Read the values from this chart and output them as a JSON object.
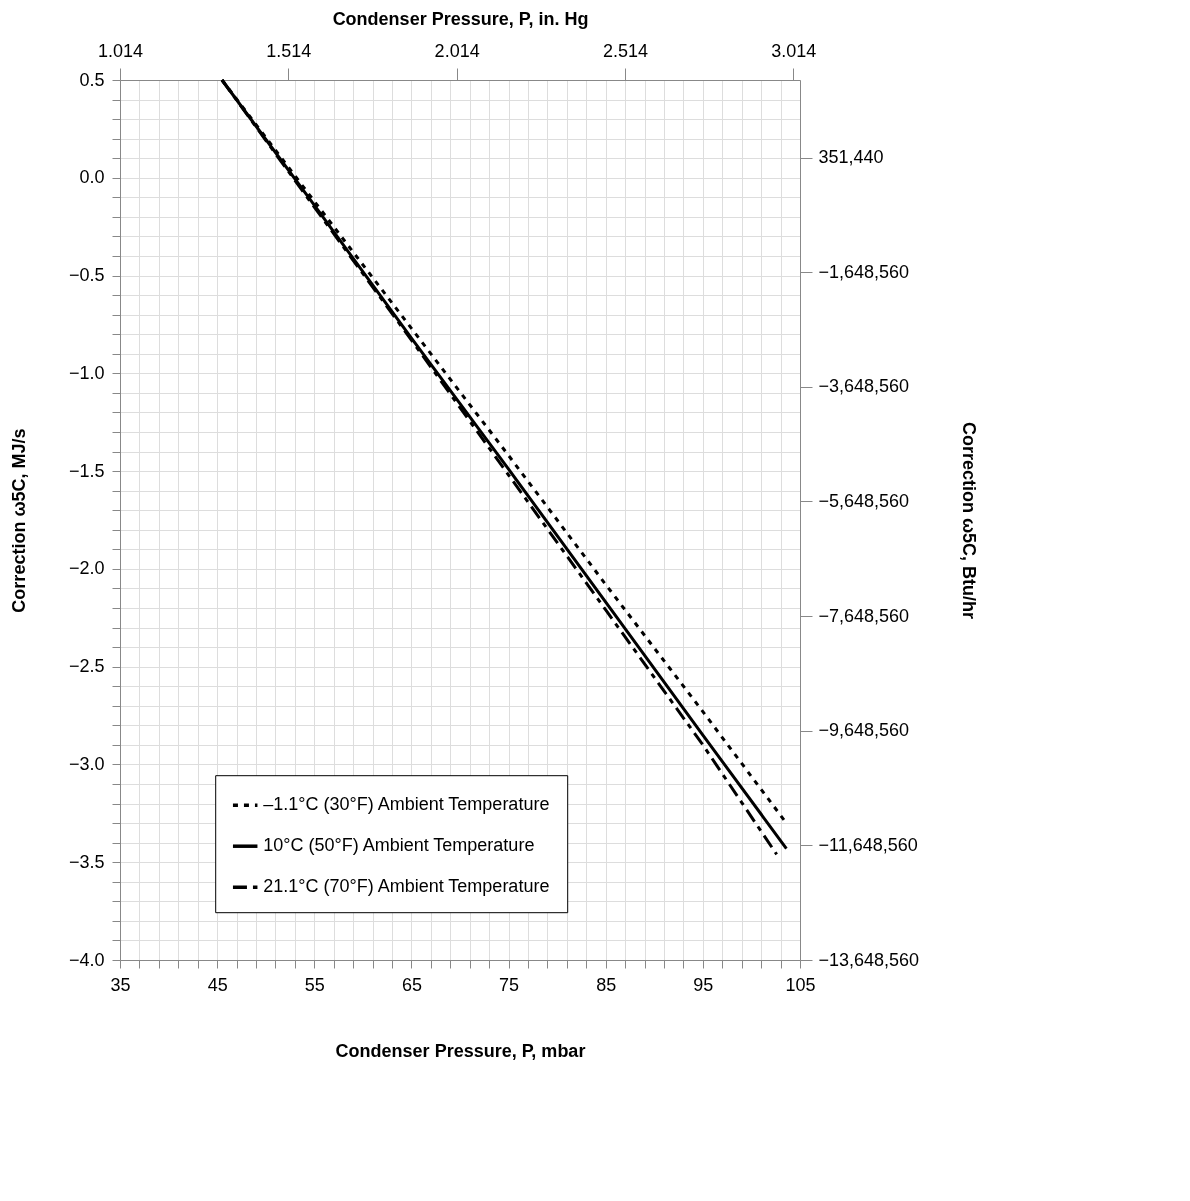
{
  "chart_data": {
    "type": "line",
    "xlabel": "Condenser Pressure, P, mbar",
    "x2label": "Condenser Pressure, P, in. Hg",
    "ylabel": "Correction ω5C, MJ/s",
    "y2label": "Correction ω5C, Btu/hr",
    "x": [
      45.5,
      55,
      65,
      75,
      85,
      95,
      103.6
    ],
    "series": [
      {
        "name": "–1.1°C (30°F) Ambient Temperature",
        "color": "#000000",
        "line_style": "dotted",
        "values": [
          0.5,
          -0.12,
          -0.77,
          -1.42,
          -2.08,
          -2.73,
          -3.3
        ]
      },
      {
        "name": "10°C (50°F) Ambient Temperature",
        "color": "#000000",
        "line_style": "solid",
        "values": [
          0.5,
          -0.14,
          -0.82,
          -1.49,
          -2.17,
          -2.85,
          -3.43
        ]
      },
      {
        "name": "21.1°C (70°F) Ambient Temperature",
        "color": "#000000",
        "line_style": "dashed",
        "x": [
          45.5,
          55,
          65,
          75,
          85,
          95,
          102.6
        ],
        "values": [
          0.5,
          -0.15,
          -0.83,
          -1.52,
          -2.21,
          -2.9,
          -3.46
        ]
      }
    ],
    "xlim": [
      35,
      105
    ],
    "xticks": [
      35,
      {
        "value": 37,
        "label": null
      },
      {
        "value": 39,
        "label": null
      },
      {
        "value": 41,
        "label": null
      },
      {
        "value": 43,
        "label": null
      },
      45,
      {
        "value": 47,
        "label": null
      },
      {
        "value": 49,
        "label": null
      },
      {
        "value": 51,
        "label": null
      },
      {
        "value": 53,
        "label": null
      },
      55,
      {
        "value": 57,
        "label": null
      },
      {
        "value": 59,
        "label": null
      },
      {
        "value": 61,
        "label": null
      },
      {
        "value": 63,
        "label": null
      },
      65,
      {
        "value": 67,
        "label": null
      },
      {
        "value": 69,
        "label": null
      },
      {
        "value": 71,
        "label": null
      },
      {
        "value": 73,
        "label": null
      },
      75,
      {
        "value": 77,
        "label": null
      },
      {
        "value": 79,
        "label": null
      },
      {
        "value": 81,
        "label": null
      },
      {
        "value": 83,
        "label": null
      },
      85,
      {
        "value": 87,
        "label": null
      },
      {
        "value": 89,
        "label": null
      },
      {
        "value": 91,
        "label": null
      },
      {
        "value": 93,
        "label": null
      },
      95,
      {
        "value": 97,
        "label": null
      },
      {
        "value": 99,
        "label": null
      },
      {
        "value": 101,
        "label": null
      },
      {
        "value": 103,
        "label": null
      },
      105
    ],
    "x2lim": [
      1.014,
      3.034
    ],
    "x2ticks": [
      1.014,
      1.514,
      2.014,
      2.514,
      3.014
    ],
    "ylim": [
      -4.0,
      0.5
    ],
    "yticks": [
      {
        "value": 0.5,
        "label": "0.5"
      },
      {
        "value": 0.4,
        "label": null
      },
      {
        "value": 0.3,
        "label": null
      },
      {
        "value": 0.2,
        "label": null
      },
      {
        "value": 0.1,
        "label": null
      },
      {
        "value": 0,
        "label": "0.0"
      },
      {
        "value": -0.1,
        "label": null
      },
      {
        "value": -0.2,
        "label": null
      },
      {
        "value": -0.3,
        "label": null
      },
      {
        "value": -0.4,
        "label": null
      },
      {
        "value": -0.5,
        "label": "−0.5"
      },
      {
        "value": -0.6,
        "label": null
      },
      {
        "value": -0.7,
        "label": null
      },
      {
        "value": -0.8,
        "label": null
      },
      {
        "value": -0.9,
        "label": null
      },
      {
        "value": -1.0,
        "label": "−1.0"
      },
      {
        "value": -1.1,
        "label": null
      },
      {
        "value": -1.2,
        "label": null
      },
      {
        "value": -1.3,
        "label": null
      },
      {
        "value": -1.4,
        "label": null
      },
      {
        "value": -1.5,
        "label": "−1.5"
      },
      {
        "value": -1.6,
        "label": null
      },
      {
        "value": -1.7,
        "label": null
      },
      {
        "value": -1.8,
        "label": null
      },
      {
        "value": -1.9,
        "label": null
      },
      {
        "value": -2.0,
        "label": "−2.0"
      },
      {
        "value": -2.1,
        "label": null
      },
      {
        "value": -2.2,
        "label": null
      },
      {
        "value": -2.3,
        "label": null
      },
      {
        "value": -2.4,
        "label": null
      },
      {
        "value": -2.5,
        "label": "−2.5"
      },
      {
        "value": -2.6,
        "label": null
      },
      {
        "value": -2.7,
        "label": null
      },
      {
        "value": -2.8,
        "label": null
      },
      {
        "value": -2.9,
        "label": null
      },
      {
        "value": -3.0,
        "label": "−3.0"
      },
      {
        "value": -3.1,
        "label": null
      },
      {
        "value": -3.2,
        "label": null
      },
      {
        "value": -3.3,
        "label": null
      },
      {
        "value": -3.4,
        "label": null
      },
      {
        "value": -3.5,
        "label": "−3.5"
      },
      {
        "value": -3.6,
        "label": null
      },
      {
        "value": -3.7,
        "label": null
      },
      {
        "value": -3.8,
        "label": null
      },
      {
        "value": -3.9,
        "label": null
      },
      {
        "value": -4.0,
        "label": "−4.0"
      }
    ],
    "y2lim": [
      -13648560,
      1705770
    ],
    "y2ticks": [
      {
        "value": 351440,
        "label": "351,440"
      },
      {
        "value": -1648560,
        "label": "−1,648,560"
      },
      {
        "value": -3648560,
        "label": "−3,648,560"
      },
      {
        "value": -5648560,
        "label": "−5,648,560"
      },
      {
        "value": -7648560,
        "label": "−7,648,560"
      },
      {
        "value": -9648560,
        "label": "−9,648,560"
      },
      {
        "value": -11648560,
        "label": "−11,648,560"
      },
      {
        "value": -13648560,
        "label": "−13,648,560"
      }
    ],
    "grid": true,
    "legend": "bottom",
    "marker": "none"
  }
}
